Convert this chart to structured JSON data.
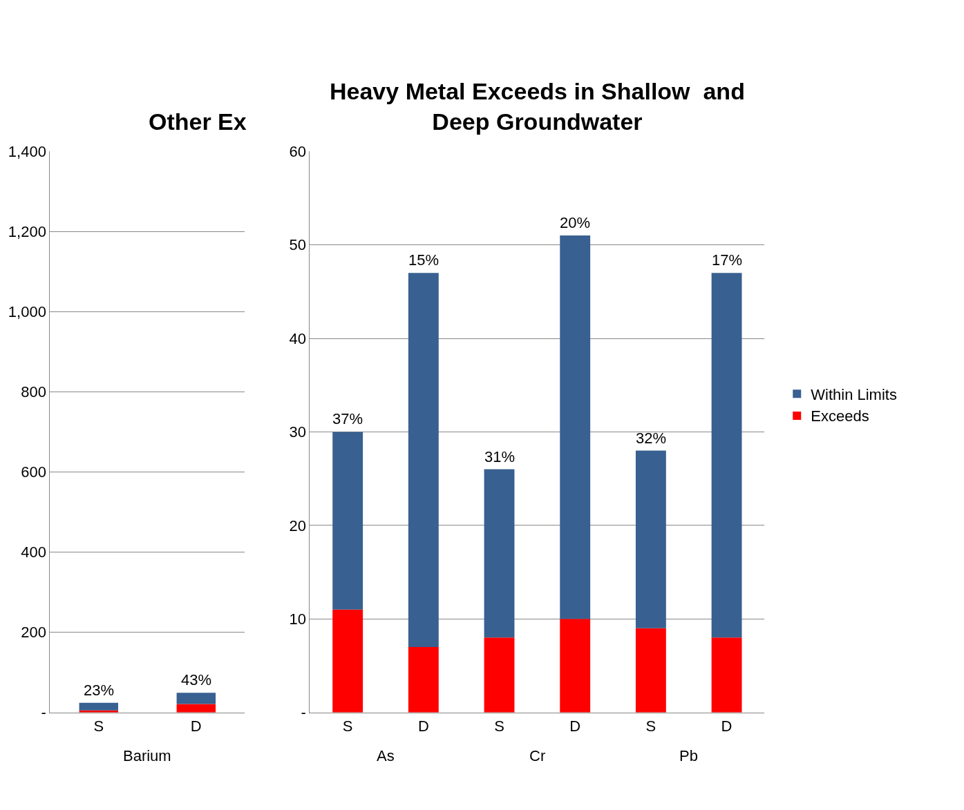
{
  "chart_data": [
    {
      "type": "bar",
      "title": "Other Ex",
      "stacked": true,
      "categories": [
        "S",
        "D"
      ],
      "grid": "y",
      "annotations": [
        "23%",
        "43%",
        "Barium"
      ],
      "ylim": [
        0,
        1400
      ],
      "yticks": [
        {
          "value": 0,
          "label": "-"
        },
        200,
        400,
        600,
        800,
        {
          "value": 1000,
          "label": "1,000"
        },
        {
          "value": 1200,
          "label": "1,200"
        },
        {
          "value": 1400,
          "label": "1,400"
        }
      ],
      "series": [
        {
          "color": "#ff0000",
          "values": [
            5,
            21
          ]
        },
        {
          "color": "#386090",
          "values": [
            19,
            28
          ]
        }
      ]
    },
    {
      "type": "bar",
      "title": "Heavy Metal Exceeds in Shallow  and\nDeep Groundwater",
      "stacked": true,
      "categories": [
        "S",
        "D",
        "S",
        "D",
        "S",
        "D"
      ],
      "grid": "y",
      "legend": "right",
      "annotations": [
        "37%",
        "15%",
        "31%",
        "20%",
        "32%",
        "17%",
        "As",
        "Cr",
        "Pb"
      ],
      "ylim": [
        0,
        60
      ],
      "yticks": [
        {
          "value": 0,
          "label": "-"
        },
        10,
        20,
        30,
        40,
        50,
        60
      ],
      "series": [
        {
          "name": "Exceeds",
          "color": "#ff0000",
          "values": [
            11,
            7,
            8,
            10,
            9,
            8
          ]
        },
        {
          "name": "Within Limits",
          "color": "#386090",
          "values": [
            19,
            40,
            18,
            41,
            19,
            39
          ]
        }
      ]
    }
  ]
}
